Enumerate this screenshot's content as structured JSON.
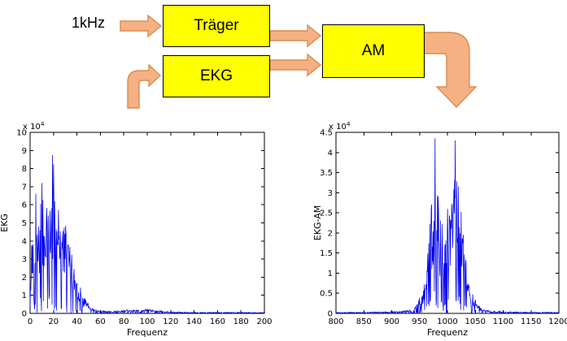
{
  "diagram": {
    "input_label": "1kHz",
    "blocks": {
      "traeger": "Träger",
      "ekg": "EKG",
      "am": "AM"
    },
    "colors": {
      "block_fill": "#FFFF00",
      "block_border": "#000000",
      "arrow_fill": "#F5B183",
      "arrow_border": "#D78E4E"
    }
  },
  "chart_data": [
    {
      "id": "ekg-spectrum",
      "type": "line",
      "title": "",
      "xlabel": "Frequenz",
      "ylabel": "EKG",
      "multiplier": {
        "prefix": "x 10",
        "exponent": "4"
      },
      "xlim": [
        0,
        200
      ],
      "ylim": [
        0,
        10
      ],
      "xticks": {
        "values": [
          0,
          20,
          40,
          60,
          80,
          100,
          120,
          140,
          160,
          180,
          200
        ],
        "labels": [
          "0",
          "20",
          "40",
          "60",
          "80",
          "100",
          "120",
          "140",
          "160",
          "180",
          "200"
        ]
      },
      "yticks": {
        "values": [
          0,
          1,
          2,
          3,
          4,
          5,
          6,
          7,
          8,
          9,
          10
        ],
        "labels": [
          "0",
          "1",
          "2",
          "3",
          "4",
          "5",
          "6",
          "7",
          "8",
          "9",
          "10"
        ]
      },
      "line_color": "#0000EE",
      "grid": false,
      "legend": null,
      "envelope": [
        [
          0,
          0.5
        ],
        [
          1,
          4.0
        ],
        [
          3,
          5.0
        ],
        [
          5,
          6.5
        ],
        [
          8,
          5.5
        ],
        [
          10,
          7.0
        ],
        [
          13,
          5.6
        ],
        [
          15,
          6.0
        ],
        [
          18,
          7.6
        ],
        [
          20,
          8.8
        ],
        [
          22,
          6.5
        ],
        [
          25,
          6.0
        ],
        [
          28,
          5.2
        ],
        [
          30,
          5.0
        ],
        [
          33,
          4.1
        ],
        [
          36,
          3.2
        ],
        [
          40,
          2.2
        ],
        [
          44,
          1.2
        ],
        [
          48,
          0.7
        ],
        [
          52,
          0.35
        ],
        [
          56,
          0.2
        ],
        [
          60,
          0.15
        ],
        [
          70,
          0.12
        ],
        [
          80,
          0.18
        ],
        [
          90,
          0.22
        ],
        [
          100,
          0.22
        ],
        [
          108,
          0.18
        ],
        [
          115,
          0.12
        ],
        [
          125,
          0.08
        ],
        [
          140,
          0.06
        ],
        [
          160,
          0.06
        ],
        [
          180,
          0.06
        ],
        [
          200,
          0.05
        ]
      ],
      "peaks": [
        [
          19,
          8.75
        ],
        [
          10,
          7.2
        ],
        [
          5,
          6.6
        ]
      ],
      "samples": 620,
      "seed": 42
    },
    {
      "id": "ekg-am-spectrum",
      "type": "line",
      "title": "",
      "xlabel": "Frequenz",
      "ylabel": "EKG-AM",
      "multiplier": {
        "prefix": "x 10",
        "exponent": "4"
      },
      "xlim": [
        800,
        1200
      ],
      "ylim": [
        0,
        4.5
      ],
      "xticks": {
        "values": [
          800,
          850,
          900,
          950,
          1000,
          1050,
          1100,
          1150,
          1200
        ],
        "labels": [
          "800",
          "850",
          "900",
          "950",
          "1000",
          "1050",
          "1100",
          "1150",
          "1200"
        ]
      },
      "yticks": {
        "values": [
          0,
          0.5,
          1,
          1.5,
          2,
          2.5,
          3,
          3.5,
          4,
          4.5
        ],
        "labels": [
          "0",
          "0.5",
          "1",
          "1.5",
          "2",
          "2.5",
          "3",
          "3.5",
          "4",
          "4.5"
        ]
      },
      "line_color": "#0000EE",
      "grid": false,
      "legend": null,
      "envelope": [
        [
          800,
          0.03
        ],
        [
          850,
          0.03
        ],
        [
          880,
          0.04
        ],
        [
          900,
          0.05
        ],
        [
          920,
          0.06
        ],
        [
          935,
          0.1
        ],
        [
          945,
          0.22
        ],
        [
          955,
          0.55
        ],
        [
          960,
          0.9
        ],
        [
          965,
          1.6
        ],
        [
          970,
          2.6
        ],
        [
          975,
          3.4
        ],
        [
          978,
          4.35
        ],
        [
          982,
          3.3
        ],
        [
          985,
          2.6
        ],
        [
          990,
          2.3
        ],
        [
          995,
          2.1
        ],
        [
          1000,
          2.4
        ],
        [
          1005,
          2.6
        ],
        [
          1010,
          3.0
        ],
        [
          1014,
          4.3
        ],
        [
          1018,
          3.8
        ],
        [
          1022,
          3.0
        ],
        [
          1026,
          2.4
        ],
        [
          1030,
          1.7
        ],
        [
          1035,
          1.1
        ],
        [
          1040,
          0.75
        ],
        [
          1045,
          0.5
        ],
        [
          1050,
          0.35
        ],
        [
          1056,
          0.2
        ],
        [
          1062,
          0.12
        ],
        [
          1070,
          0.08
        ],
        [
          1080,
          0.06
        ],
        [
          1100,
          0.05
        ],
        [
          1120,
          0.04
        ],
        [
          1150,
          0.03
        ],
        [
          1200,
          0.03
        ]
      ],
      "peaks": [
        [
          978,
          4.35
        ],
        [
          1014,
          4.3
        ],
        [
          1000,
          2.6
        ]
      ],
      "samples": 640,
      "seed": 1337
    }
  ]
}
